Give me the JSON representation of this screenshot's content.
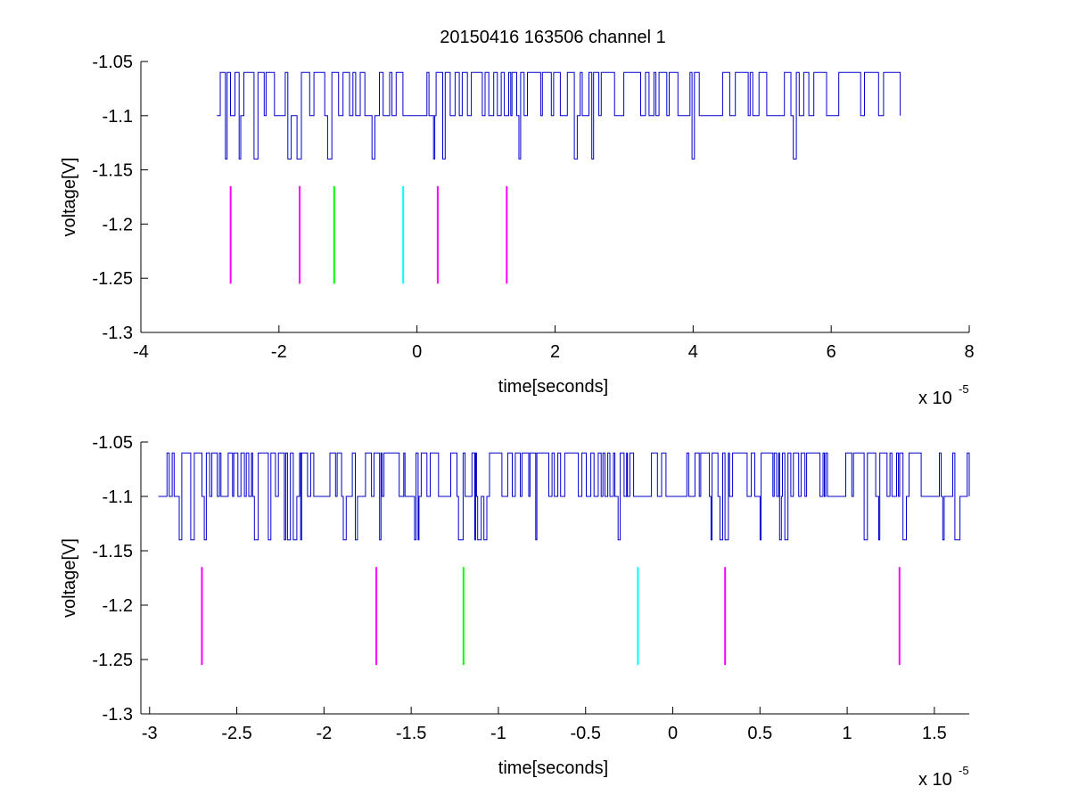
{
  "figure_title": "20150416 163506 channel 1",
  "colors": {
    "signal": "#0000cc",
    "magenta": "#ff00ff",
    "green": "#00ff00",
    "cyan": "#00ffff",
    "axis": "#000000"
  },
  "chart_data": [
    {
      "type": "line",
      "title": "20150416 163506 channel 1",
      "xlabel": "time[seconds]",
      "ylabel": "voltage[V]",
      "x_exponent_label": "x 10",
      "x_exponent": "-5",
      "xlim": [
        -4,
        8
      ],
      "ylim": [
        -1.3,
        -1.05
      ],
      "xticks": [
        "-4",
        "-2",
        "0",
        "2",
        "4",
        "6",
        "8"
      ],
      "xtick_values": [
        -4,
        -2,
        0,
        2,
        4,
        6,
        8
      ],
      "yticks": [
        "-1.05",
        "-1.1",
        "-1.15",
        "-1.2",
        "-1.25",
        "-1.3"
      ],
      "ytick_values": [
        -1.05,
        -1.1,
        -1.15,
        -1.2,
        -1.25,
        -1.3
      ],
      "grid": false,
      "series": [
        {
          "kind": "step",
          "color": "#0000cc",
          "x_range": [
            -2.9,
            7.0
          ],
          "y_levels": [
            -1.06,
            -1.1,
            -1.14
          ],
          "baseline": -1.1,
          "pattern": "dense digital noise toggling between -1.06 and -1.1 with occasional dips to -1.14"
        }
      ],
      "markers": [
        {
          "x": -2.7,
          "y_range": [
            -1.255,
            -1.165
          ],
          "color": "#ff00ff"
        },
        {
          "x": -1.7,
          "y_range": [
            -1.255,
            -1.165
          ],
          "color": "#ff00ff"
        },
        {
          "x": -1.2,
          "y_range": [
            -1.255,
            -1.165
          ],
          "color": "#00ff00"
        },
        {
          "x": -0.2,
          "y_range": [
            -1.255,
            -1.165
          ],
          "color": "#00ffff"
        },
        {
          "x": 0.3,
          "y_range": [
            -1.255,
            -1.165
          ],
          "color": "#ff00ff"
        },
        {
          "x": 1.3,
          "y_range": [
            -1.255,
            -1.165
          ],
          "color": "#ff00ff"
        }
      ]
    },
    {
      "type": "line",
      "xlabel": "time[seconds]",
      "ylabel": "voltage[V]",
      "x_exponent_label": "x 10",
      "x_exponent": "-5",
      "xlim": [
        -3.05,
        1.7
      ],
      "ylim": [
        -1.3,
        -1.05
      ],
      "xticks": [
        "-3",
        "-2.5",
        "-2",
        "-1.5",
        "-1",
        "-0.5",
        "0",
        "0.5",
        "1",
        "1.5"
      ],
      "xtick_values": [
        -3,
        -2.5,
        -2,
        -1.5,
        -1,
        -0.5,
        0,
        0.5,
        1,
        1.5
      ],
      "yticks": [
        "-1.05",
        "-1.1",
        "-1.15",
        "-1.2",
        "-1.25",
        "-1.3"
      ],
      "ytick_values": [
        -1.05,
        -1.1,
        -1.15,
        -1.2,
        -1.25,
        -1.3
      ],
      "grid": false,
      "series": [
        {
          "kind": "step",
          "color": "#0000cc",
          "x_range": [
            -2.95,
            1.7
          ],
          "y_levels": [
            -1.06,
            -1.1,
            -1.14
          ],
          "baseline": -1.1,
          "pattern": "zoomed view of the same digital noise"
        }
      ],
      "markers": [
        {
          "x": -2.7,
          "y_range": [
            -1.255,
            -1.165
          ],
          "color": "#ff00ff"
        },
        {
          "x": -1.7,
          "y_range": [
            -1.255,
            -1.165
          ],
          "color": "#ff00ff"
        },
        {
          "x": -1.2,
          "y_range": [
            -1.255,
            -1.165
          ],
          "color": "#00ff00"
        },
        {
          "x": -0.2,
          "y_range": [
            -1.255,
            -1.165
          ],
          "color": "#00ffff"
        },
        {
          "x": 0.3,
          "y_range": [
            -1.255,
            -1.165
          ],
          "color": "#ff00ff"
        },
        {
          "x": 1.3,
          "y_range": [
            -1.255,
            -1.165
          ],
          "color": "#ff00ff"
        }
      ]
    }
  ]
}
